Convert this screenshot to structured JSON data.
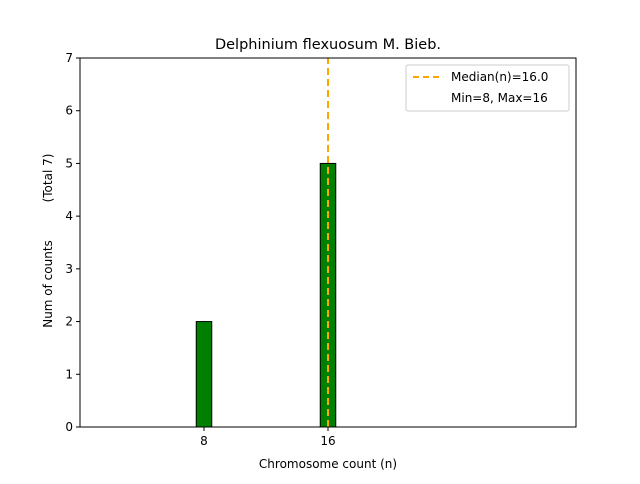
{
  "chart_data": {
    "type": "bar",
    "title": "Delphinium flexuosum M. Bieb.",
    "xlabel": "Chromosome count (n)",
    "ylabel": "Num of counts",
    "ylabel_note": "(Total 7)",
    "x": [
      8,
      16
    ],
    "values": [
      2,
      5
    ],
    "xticks": [
      8,
      16
    ],
    "yticks": [
      0,
      1,
      2,
      3,
      4,
      5,
      6,
      7
    ],
    "xlim": [
      0,
      32
    ],
    "ylim": [
      0,
      7
    ],
    "bar_width": 1,
    "zero_bins_range": [
      0.5,
      19.5
    ],
    "bar_color": "#008000",
    "median": 16.0,
    "median_color": "#FFA500",
    "grid": false,
    "legend_position": "top-right",
    "legend": [
      "Median(n)=16.0",
      "Min=8, Max=16"
    ]
  }
}
